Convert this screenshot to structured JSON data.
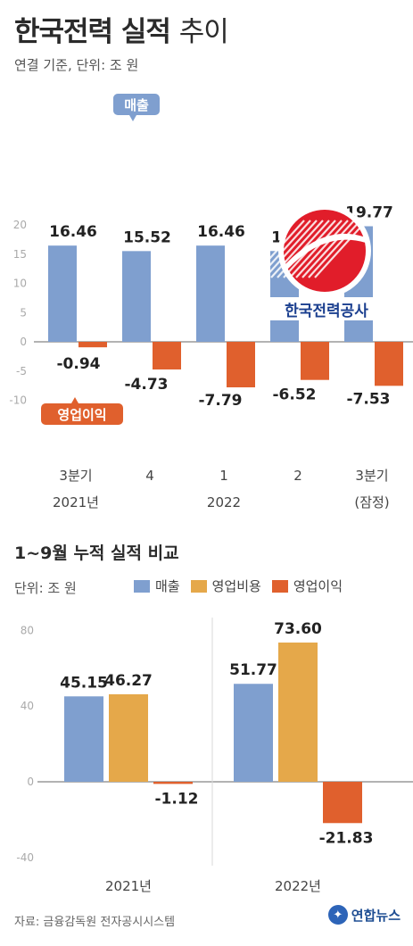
{
  "header": {
    "title_bold": "한국전력 실적",
    "title_light": "추이",
    "subtitle": "연결 기준, 단위: 조 원"
  },
  "colors": {
    "revenue": "#7f9fcf",
    "operating_cost": "#e5a84a",
    "operating_profit": "#e0602d"
  },
  "logo": {
    "text": "한국전력공사",
    "icon": "kepco-logo-icon"
  },
  "chart_data": [
    {
      "type": "bar",
      "title": "",
      "ylim": [
        -10,
        20
      ],
      "yticks": [
        -10,
        -5,
        0,
        5,
        10,
        15,
        20
      ],
      "categories": [
        "3분기|2021년",
        "4",
        "1|2022",
        "2",
        "3분기|(잠정)"
      ],
      "series": [
        {
          "name": "매출",
          "values": [
            16.46,
            15.52,
            16.46,
            15.53,
            19.77
          ],
          "labels": [
            "16.46",
            "15.52",
            "16.46",
            "15.53",
            "19.77"
          ]
        },
        {
          "name": "영업이익",
          "values": [
            -0.94,
            -4.73,
            -7.79,
            -6.52,
            -7.53
          ],
          "labels": [
            "-0.94",
            "-4.73",
            "-7.79",
            "-6.52",
            "-7.53"
          ]
        }
      ],
      "grid": false
    },
    {
      "type": "bar",
      "title": "1~9월 누적 실적 비교",
      "unit": "단위: 조 원",
      "ylim": [
        -40,
        80
      ],
      "yticks": [
        -40,
        0,
        40,
        80
      ],
      "categories": [
        "2021년",
        "2022년"
      ],
      "series": [
        {
          "name": "매출",
          "values": [
            45.15,
            51.77
          ],
          "labels": [
            "45.15",
            "51.77"
          ]
        },
        {
          "name": "영업비용",
          "values": [
            46.27,
            73.6
          ],
          "labels": [
            "46.27",
            "73.60"
          ]
        },
        {
          "name": "영업이익",
          "values": [
            -1.12,
            -21.83
          ],
          "labels": [
            "-1.12",
            "-21.83"
          ]
        }
      ],
      "legend": "top-right",
      "grid": false
    }
  ],
  "footer": {
    "source": "자료: 금융감독원 전자공시시스템",
    "brand": "연합뉴스"
  }
}
